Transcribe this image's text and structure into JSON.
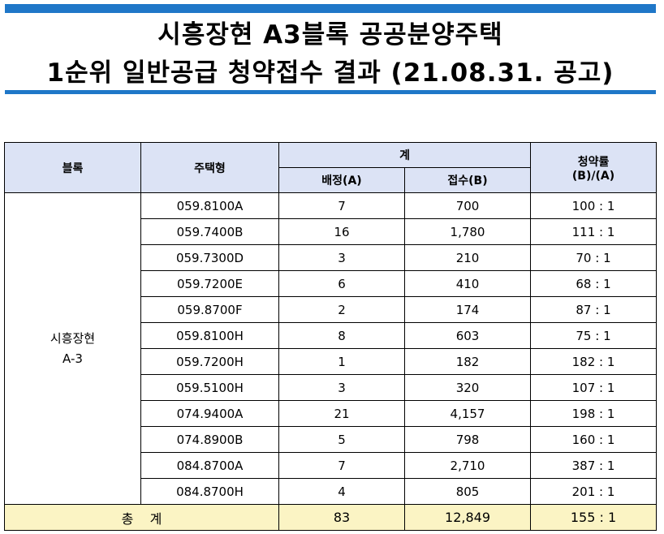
{
  "title": {
    "line1": "시흥장현 A3블록 공공분양주택",
    "line2": "1순위 일반공급 청약접수 결과 (21.08.31. 공고)"
  },
  "colors": {
    "accent_bar": "#1f77c8",
    "header_bg": "#dce3f5",
    "total_bg": "#fbf4c4"
  },
  "table": {
    "headers": {
      "block": "블록",
      "housing_type": "주택형",
      "total_group": "계",
      "allocated": "배정(A)",
      "received": "접수(B)",
      "rate_line1": "청약률",
      "rate_line2": "(B)/(A)"
    },
    "block": {
      "line1": "시흥장현",
      "line2": "A-3"
    },
    "rows": [
      {
        "type": "059.8100A",
        "allocated": "7",
        "received": "700",
        "rate": "100 : 1"
      },
      {
        "type": "059.7400B",
        "allocated": "16",
        "received": "1,780",
        "rate": "111 : 1"
      },
      {
        "type": "059.7300D",
        "allocated": "3",
        "received": "210",
        "rate": "70 : 1"
      },
      {
        "type": "059.7200E",
        "allocated": "6",
        "received": "410",
        "rate": "68 : 1"
      },
      {
        "type": "059.8700F",
        "allocated": "2",
        "received": "174",
        "rate": "87 : 1"
      },
      {
        "type": "059.8100H",
        "allocated": "8",
        "received": "603",
        "rate": "75 : 1"
      },
      {
        "type": "059.7200H",
        "allocated": "1",
        "received": "182",
        "rate": "182 : 1"
      },
      {
        "type": "059.5100H",
        "allocated": "3",
        "received": "320",
        "rate": "107 : 1"
      },
      {
        "type": "074.9400A",
        "allocated": "21",
        "received": "4,157",
        "rate": "198 : 1"
      },
      {
        "type": "074.8900B",
        "allocated": "5",
        "received": "798",
        "rate": "160 : 1"
      },
      {
        "type": "084.8700A",
        "allocated": "7",
        "received": "2,710",
        "rate": "387 : 1"
      },
      {
        "type": "084.8700H",
        "allocated": "4",
        "received": "805",
        "rate": "201 : 1"
      }
    ],
    "total": {
      "label": "총    계",
      "allocated": "83",
      "received": "12,849",
      "rate": "155 : 1"
    }
  }
}
